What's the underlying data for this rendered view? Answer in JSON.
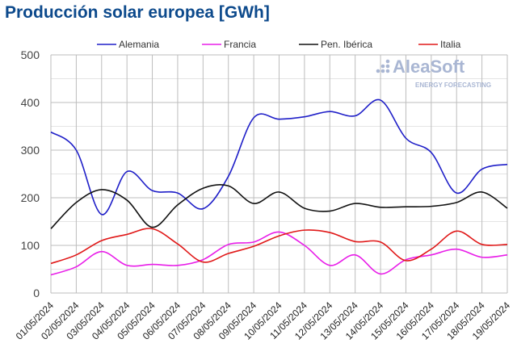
{
  "chart_data": {
    "type": "line",
    "title": "Producción solar europea [GWh]",
    "xlabel": "",
    "ylabel": "",
    "ylim": [
      0,
      500
    ],
    "yticks": [
      0,
      100,
      200,
      300,
      400,
      500
    ],
    "grid": true,
    "legend_position": "top",
    "watermark": {
      "name": "AleaSoft",
      "tagline": "ENERGY FORECASTING"
    },
    "categories": [
      "01/05/2024",
      "02/05/2024",
      "03/05/2024",
      "04/05/2024",
      "05/05/2024",
      "06/05/2024",
      "07/05/2024",
      "08/05/2024",
      "09/05/2024",
      "10/05/2024",
      "11/05/2024",
      "12/05/2024",
      "13/05/2024",
      "14/05/2024",
      "15/05/2024",
      "16/05/2024",
      "17/05/2024",
      "18/05/2024",
      "19/05/2024"
    ],
    "series": [
      {
        "name": "Alemania",
        "color": "#1f1fc8",
        "values": [
          338,
          300,
          165,
          255,
          215,
          210,
          177,
          245,
          368,
          365,
          370,
          381,
          372,
          405,
          325,
          295,
          210,
          260,
          270
        ]
      },
      {
        "name": "Francia",
        "color": "#e81ee8",
        "values": [
          38,
          55,
          87,
          58,
          60,
          58,
          70,
          102,
          107,
          128,
          100,
          58,
          80,
          40,
          70,
          80,
          92,
          75,
          80
        ]
      },
      {
        "name": "Pen. Ibérica",
        "color": "#111111",
        "values": [
          135,
          190,
          217,
          195,
          138,
          185,
          220,
          225,
          188,
          212,
          178,
          172,
          188,
          180,
          181,
          182,
          190,
          212,
          178
        ]
      },
      {
        "name": "Italia",
        "color": "#e01818",
        "values": [
          62,
          80,
          110,
          123,
          135,
          103,
          65,
          83,
          98,
          120,
          132,
          127,
          108,
          107,
          68,
          92,
          130,
          102,
          102
        ]
      }
    ]
  }
}
